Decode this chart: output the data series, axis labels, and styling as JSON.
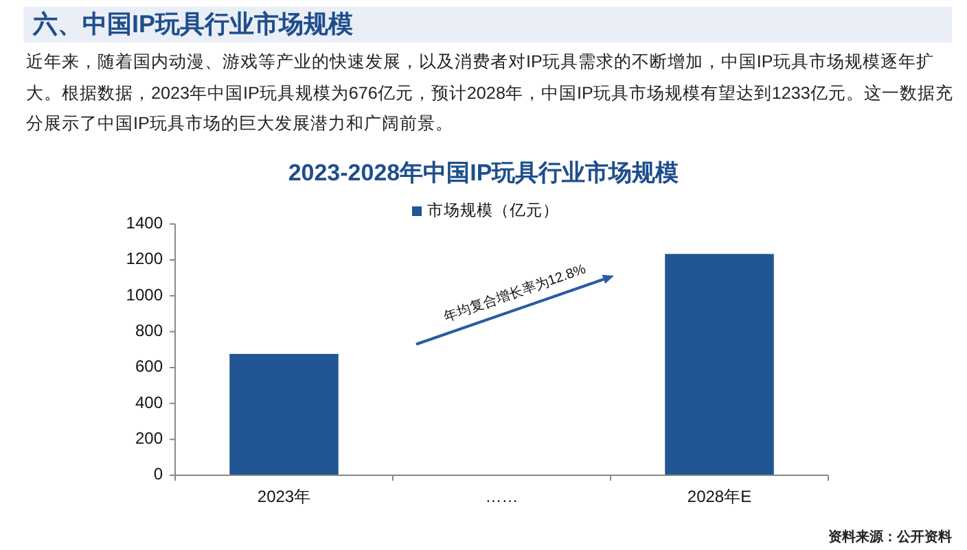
{
  "chart_data": {
    "type": "bar",
    "title": "2023-2028年中国IP玩具行业市场规模",
    "categories": [
      "2023年",
      "……",
      "2028年E"
    ],
    "series": [
      {
        "name": "市场规模（亿元）",
        "color": "#215594",
        "values": [
          676,
          null,
          1233
        ]
      }
    ],
    "ylim": [
      0,
      1400
    ],
    "yticks": [
      0,
      200,
      400,
      600,
      800,
      1000,
      1200,
      1400
    ],
    "legend": "top",
    "annotations": [
      "六、中国IP玩具行业市场规模",
      "近年来，随着国内动漫、游戏等产业的快速发展，以及消费者对IP玩具需求的不断增加，中国IP玩具市场规模逐年扩大。根据数据，2023年中国IP玩具规模为676亿元，预计2028年，中国IP玩具市场规模有望达到1233亿元。这一数据充分展示了中国IP玩具市场的巨大发展潜力和广阔前景。",
      "年均复合增长率为12.8%",
      "资料来源：公开资料"
    ]
  }
}
